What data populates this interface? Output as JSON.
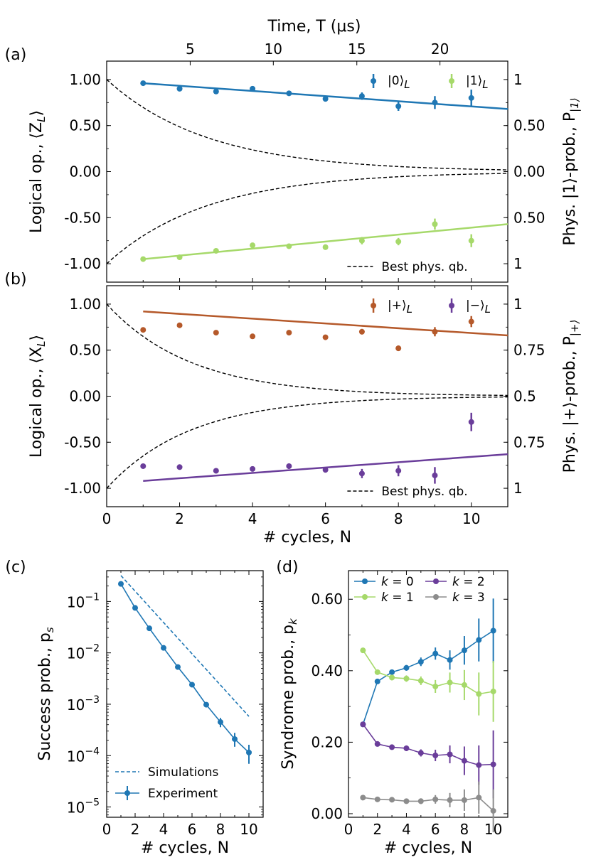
{
  "colors": {
    "blue": "#1f77b4",
    "lightgreen": "#a6d96a",
    "orange": "#b5592a",
    "purple": "#6a3d9a",
    "gray": "#8c8c8c",
    "black": "#000000"
  },
  "chart_data": [
    {
      "panel": "(a)",
      "type": "scatter",
      "top_axis_label": "Time, T (μs)",
      "top_ticks": [
        "5",
        "10",
        "15",
        "20"
      ],
      "top_tick_positions_cycles": [
        2.29,
        4.57,
        6.86,
        9.14
      ],
      "ylabel": "Logical op., ⟨Z_L⟩",
      "ylabel_left": "Logical op., ⟨Z",
      "ylabel_left_sub": "L",
      "ylabel_left_end": "⟩",
      "right_ylabel": "Phys. |1⟩-prob., P_|1⟩",
      "right_ylabel_main": "Phys. |1⟩-prob., P",
      "right_ylabel_sub": "|1⟩",
      "xlim": [
        0,
        11
      ],
      "ylim": [
        -1.2,
        1.2
      ],
      "yticks": [
        "1.00",
        "0.50",
        "0.00",
        "-0.50",
        "-1.00"
      ],
      "ytick_values": [
        1.0,
        0.5,
        0.0,
        -0.5,
        -1.0
      ],
      "right_ticks": [
        "1",
        "0.50",
        "0.00",
        "0.50",
        "1"
      ],
      "series": [
        {
          "name": "|0⟩_L",
          "label_main": "|0⟩",
          "label_sub": "L",
          "color": "#1f77b4",
          "x": [
            1,
            2,
            3,
            4,
            5,
            6,
            7,
            8,
            9,
            10
          ],
          "y": [
            0.96,
            0.9,
            0.87,
            0.9,
            0.85,
            0.79,
            0.82,
            0.71,
            0.75,
            0.8
          ],
          "err": [
            0.01,
            0.01,
            0.02,
            0.02,
            0.02,
            0.03,
            0.04,
            0.05,
            0.07,
            0.09
          ],
          "fit": [
            1.0,
            0.96,
            11.0,
            0.68
          ]
        },
        {
          "name": "|1⟩_L",
          "label_main": "|1⟩",
          "label_sub": "L",
          "color": "#a6d96a",
          "x": [
            1,
            2,
            3,
            4,
            5,
            6,
            7,
            8,
            9,
            10
          ],
          "y": [
            -0.95,
            -0.93,
            -0.86,
            -0.8,
            -0.81,
            -0.82,
            -0.75,
            -0.76,
            -0.57,
            -0.75
          ],
          "err": [
            0.01,
            0.01,
            0.02,
            0.02,
            0.02,
            0.03,
            0.04,
            0.04,
            0.06,
            0.07
          ],
          "fit": [
            1.0,
            -0.95,
            11.0,
            -0.57
          ]
        }
      ],
      "best_phys": {
        "label": "Best phys. qb.",
        "tau": 18.0
      }
    },
    {
      "panel": "(b)",
      "type": "scatter",
      "ylabel": "Logical op., ⟨X_L⟩",
      "ylabel_left": "Logical op., ⟨X",
      "ylabel_left_sub": "L",
      "ylabel_left_end": "⟩",
      "right_ylabel": "Phys. |+⟩-prob., P_|+⟩",
      "right_ylabel_main": "Phys. |+⟩-prob., P",
      "right_ylabel_sub": "|+⟩",
      "xlabel": "#  cycles, N",
      "xticks": [
        "0",
        "2",
        "4",
        "6",
        "8",
        "10"
      ],
      "xtick_values": [
        0,
        2,
        4,
        6,
        8,
        10
      ],
      "xlim": [
        0,
        11
      ],
      "ylim": [
        -1.2,
        1.2
      ],
      "yticks": [
        "1.00",
        "0.50",
        "0.00",
        "-0.50",
        "-1.00"
      ],
      "ytick_values": [
        1.0,
        0.5,
        0.0,
        -0.5,
        -1.0
      ],
      "right_ticks": [
        "1",
        "0.75",
        "0.5",
        "0.75",
        "1"
      ],
      "series": [
        {
          "name": "|+⟩_L",
          "label_main": "|+⟩",
          "label_sub": "L",
          "color": "#b5592a",
          "x": [
            1,
            2,
            3,
            4,
            5,
            6,
            7,
            8,
            9,
            10
          ],
          "y": [
            0.72,
            0.77,
            0.69,
            0.65,
            0.69,
            0.64,
            0.7,
            0.52,
            0.7,
            0.81
          ],
          "err": [
            0.01,
            0.01,
            0.02,
            0.02,
            0.02,
            0.02,
            0.03,
            0.03,
            0.05,
            0.06
          ],
          "fit": [
            1.0,
            0.92,
            11.0,
            0.66
          ]
        },
        {
          "name": "|−⟩_L",
          "label_main": "|−⟩",
          "label_sub": "L",
          "color": "#6a3d9a",
          "x": [
            1,
            2,
            3,
            4,
            5,
            6,
            7,
            8,
            9,
            10
          ],
          "y": [
            -0.76,
            -0.77,
            -0.81,
            -0.79,
            -0.76,
            -0.8,
            -0.84,
            -0.81,
            -0.86,
            -0.28
          ],
          "err": [
            0.01,
            0.01,
            0.02,
            0.02,
            0.03,
            0.03,
            0.05,
            0.06,
            0.09,
            0.1
          ],
          "fit": [
            1.0,
            -0.92,
            11.0,
            -0.63
          ]
        }
      ],
      "best_phys": {
        "label": "Best phys. qb.",
        "tau": 15.0
      }
    },
    {
      "panel": "(c)",
      "type": "line",
      "yscale": "log",
      "ylabel": "Success prob., p_s",
      "ylabel_main": "Success prob., p",
      "ylabel_sub": "s",
      "xlabel": "#  cycles, N",
      "xticks": [
        "0",
        "2",
        "4",
        "6",
        "8",
        "10"
      ],
      "xtick_values": [
        0,
        2,
        4,
        6,
        8,
        10
      ],
      "xlim": [
        0,
        11
      ],
      "ylim_log10": [
        -5.2,
        -0.4
      ],
      "yticks": [
        {
          "base": "10",
          "exp": "−1",
          "log": -1
        },
        {
          "base": "10",
          "exp": "−2",
          "log": -2
        },
        {
          "base": "10",
          "exp": "−3",
          "log": -3
        },
        {
          "base": "10",
          "exp": "−4",
          "log": -4
        },
        {
          "base": "10",
          "exp": "−5",
          "log": -5
        }
      ],
      "series": [
        {
          "name": "Experiment",
          "color": "#1f77b4",
          "x": [
            1,
            2,
            3,
            4,
            5,
            6,
            7,
            8,
            9,
            10
          ],
          "y": [
            0.22,
            0.075,
            0.03,
            0.0125,
            0.0053,
            0.0024,
            0.00098,
            0.00045,
            0.00021,
            0.000115
          ],
          "err_log_up": [
            0.01,
            0.01,
            0.01,
            0.01,
            0.02,
            0.02,
            0.04,
            0.08,
            0.12,
            0.15
          ],
          "err_log_down": [
            0.01,
            0.01,
            0.01,
            0.01,
            0.02,
            0.02,
            0.04,
            0.1,
            0.15,
            0.22
          ]
        },
        {
          "name": "Simulations",
          "color": "#1f77b4",
          "dashed": true,
          "x": [
            1,
            10
          ],
          "y": [
            0.32,
            0.00058
          ]
        }
      ]
    },
    {
      "panel": "(d)",
      "type": "line",
      "ylabel": "Syndrome prob., p_k",
      "ylabel_main": "Syndrome prob., p",
      "ylabel_sub": "k",
      "xlabel": "#  cycles, N",
      "xticks": [
        "0",
        "2",
        "4",
        "6",
        "8",
        "10"
      ],
      "xtick_values": [
        0,
        2,
        4,
        6,
        8,
        10
      ],
      "xlim": [
        0,
        11
      ],
      "ylim": [
        -0.01,
        0.68
      ],
      "yticks": [
        "0.60",
        "0.40",
        "0.20",
        "0.00"
      ],
      "ytick_values": [
        0.6,
        0.4,
        0.2,
        0.0
      ],
      "series": [
        {
          "name": "k = 0",
          "k_label": "k",
          "k_value": "0",
          "color": "#1f77b4",
          "x": [
            1,
            2,
            3,
            4,
            5,
            6,
            7,
            8,
            9,
            10
          ],
          "y": [
            0.25,
            0.37,
            0.396,
            0.408,
            0.425,
            0.448,
            0.43,
            0.457,
            0.486,
            0.512
          ],
          "err": [
            0.005,
            0.005,
            0.007,
            0.008,
            0.012,
            0.017,
            0.027,
            0.04,
            0.06,
            0.09
          ]
        },
        {
          "name": "k = 1",
          "k_label": "k",
          "k_value": "1",
          "color": "#a6d96a",
          "x": [
            1,
            2,
            3,
            4,
            5,
            6,
            7,
            8,
            9,
            10
          ],
          "y": [
            0.457,
            0.396,
            0.381,
            0.378,
            0.372,
            0.356,
            0.367,
            0.36,
            0.335,
            0.342
          ],
          "err": [
            0.005,
            0.006,
            0.008,
            0.009,
            0.012,
            0.018,
            0.028,
            0.042,
            0.06,
            0.085
          ]
        },
        {
          "name": "k = 2",
          "k_label": "k",
          "k_value": "2",
          "color": "#6a3d9a",
          "x": [
            1,
            2,
            3,
            4,
            5,
            6,
            7,
            8,
            9,
            10
          ],
          "y": [
            0.25,
            0.195,
            0.186,
            0.183,
            0.17,
            0.163,
            0.166,
            0.148,
            0.136,
            0.138
          ],
          "err": [
            0.005,
            0.005,
            0.006,
            0.008,
            0.01,
            0.016,
            0.025,
            0.04,
            0.055,
            0.095
          ]
        },
        {
          "name": "k = 3",
          "k_label": "k",
          "k_value": "3",
          "color": "#8c8c8c",
          "x": [
            1,
            2,
            3,
            4,
            5,
            6,
            7,
            8,
            9,
            10
          ],
          "y": [
            0.045,
            0.04,
            0.039,
            0.035,
            0.035,
            0.04,
            0.038,
            0.038,
            0.045,
            0.008
          ],
          "err": [
            0.003,
            0.003,
            0.004,
            0.005,
            0.008,
            0.012,
            0.02,
            0.03,
            0.045,
            0.06
          ]
        }
      ]
    }
  ]
}
